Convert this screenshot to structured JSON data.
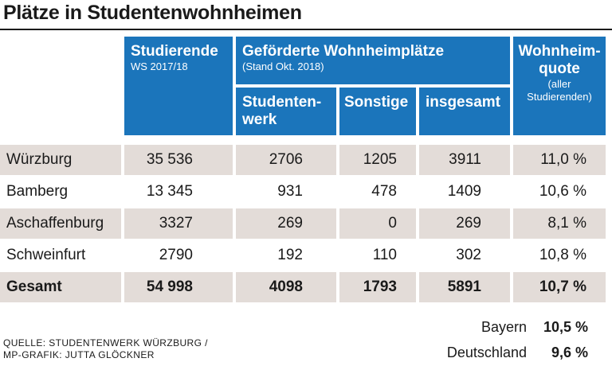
{
  "title": "Plätze in Studentenwohnheimen",
  "headers": {
    "students": {
      "main": "Studierende",
      "sub": "WS 2017/18"
    },
    "funded": {
      "main": "Geförderte Wohnheimplätze",
      "sub": "(Stand Okt. 2018)"
    },
    "studentenwerk_line1": "Studenten-",
    "studentenwerk_line2": "werk",
    "sonstige": "Sonstige",
    "insgesamt": "insgesamt",
    "quote": {
      "line1": "Wohnheim-",
      "line2": "quote",
      "sub1": "(aller",
      "sub2": "Studierenden)"
    }
  },
  "chart_data": {
    "type": "table",
    "title": "Plätze in Studentenwohnheimen",
    "columns": [
      "Studierende WS 2017/18",
      "Studentenwerk",
      "Sonstige",
      "insgesamt",
      "Wohnheimquote (aller Studierenden)"
    ],
    "rows": [
      {
        "name": "Würzburg",
        "cells": [
          "35 536",
          "2706",
          "1205",
          "3911",
          "11,0 %"
        ]
      },
      {
        "name": "Bamberg",
        "cells": [
          "13 345",
          "931",
          "478",
          "1409",
          "10,6 %"
        ]
      },
      {
        "name": "Aschaffenburg",
        "cells": [
          "3327",
          "269",
          "0",
          "269",
          "8,1 %"
        ]
      },
      {
        "name": "Schweinfurt",
        "cells": [
          "2790",
          "192",
          "110",
          "302",
          "10,8 %"
        ]
      },
      {
        "name": "Gesamt",
        "cells": [
          "54 998",
          "4098",
          "1793",
          "5891",
          "10,7 %"
        ]
      }
    ],
    "reference": [
      {
        "name": "Bayern",
        "value": "10,5 %"
      },
      {
        "name": "Deutschland",
        "value": "9,6 %"
      }
    ]
  },
  "source": {
    "line1": "QUELLE: STUDENTENWERK WÜRZBURG /",
    "line2": "MP-GRAFIK: JUTTA GLÖCKNER"
  }
}
